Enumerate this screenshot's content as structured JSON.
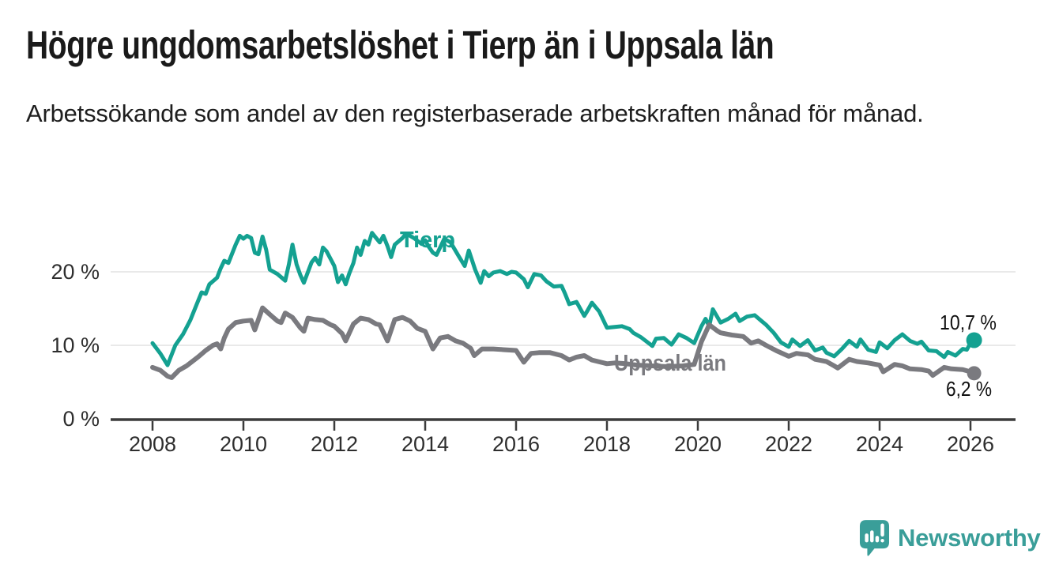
{
  "header": {
    "title": "Högre ungdomsarbetslöshet i Tierp än i Uppsala län",
    "subtitle": "Arbetssökande som andel av den registerbaserade arbetskraften månad för månad."
  },
  "chart_data": {
    "type": "line",
    "legend": "direct-labels-on-lines",
    "grid": "horizontal",
    "colors": {
      "grid": "#e2e2e2",
      "axis": "#3b3b3b",
      "tick_text": "#2e2e2e",
      "end_label_text": "#111111"
    },
    "x_axis": {
      "range_years": [
        2007.1,
        2027.0
      ],
      "ticks": [
        2008,
        2010,
        2012,
        2014,
        2016,
        2018,
        2020,
        2022,
        2024,
        2026
      ],
      "tick_labels": [
        "2008",
        "2010",
        "2012",
        "2014",
        "2016",
        "2018",
        "2020",
        "2022",
        "2024",
        "2026"
      ]
    },
    "y_axis": {
      "unit": "%",
      "range": [
        0,
        28
      ],
      "ticks": [
        {
          "value": 0,
          "label": "0 %"
        },
        {
          "value": 10,
          "label": "10 %"
        },
        {
          "value": 20,
          "label": "20 %"
        }
      ]
    },
    "series": [
      {
        "name": "Tierp",
        "color": "#14a191",
        "end_value": 10.7,
        "end_label": "10,7 %",
        "points": [
          [
            2008.0,
            10.3
          ],
          [
            2008.17,
            8.9
          ],
          [
            2008.33,
            7.3
          ],
          [
            2008.5,
            10.0
          ],
          [
            2008.67,
            11.5
          ],
          [
            2008.83,
            13.4
          ],
          [
            2009.0,
            16.0
          ],
          [
            2009.08,
            17.2
          ],
          [
            2009.17,
            17.0
          ],
          [
            2009.25,
            18.3
          ],
          [
            2009.42,
            19.2
          ],
          [
            2009.5,
            20.5
          ],
          [
            2009.58,
            21.5
          ],
          [
            2009.67,
            21.2
          ],
          [
            2009.83,
            23.7
          ],
          [
            2009.92,
            24.9
          ],
          [
            2010.0,
            24.5
          ],
          [
            2010.08,
            24.9
          ],
          [
            2010.17,
            24.6
          ],
          [
            2010.25,
            22.6
          ],
          [
            2010.33,
            22.4
          ],
          [
            2010.42,
            24.8
          ],
          [
            2010.5,
            23.0
          ],
          [
            2010.58,
            20.3
          ],
          [
            2010.75,
            19.7
          ],
          [
            2010.92,
            18.8
          ],
          [
            2011.0,
            21.0
          ],
          [
            2011.08,
            23.7
          ],
          [
            2011.17,
            21.0
          ],
          [
            2011.25,
            19.6
          ],
          [
            2011.33,
            18.5
          ],
          [
            2011.42,
            20.0
          ],
          [
            2011.5,
            21.3
          ],
          [
            2011.58,
            21.9
          ],
          [
            2011.67,
            21.0
          ],
          [
            2011.75,
            23.3
          ],
          [
            2011.83,
            22.8
          ],
          [
            2012.0,
            20.8
          ],
          [
            2012.08,
            18.6
          ],
          [
            2012.17,
            19.5
          ],
          [
            2012.25,
            18.3
          ],
          [
            2012.33,
            19.8
          ],
          [
            2012.42,
            21.2
          ],
          [
            2012.5,
            23.3
          ],
          [
            2012.58,
            22.3
          ],
          [
            2012.67,
            24.2
          ],
          [
            2012.75,
            23.7
          ],
          [
            2012.83,
            25.3
          ],
          [
            2012.92,
            24.6
          ],
          [
            2013.0,
            24.0
          ],
          [
            2013.08,
            24.9
          ],
          [
            2013.17,
            23.5
          ],
          [
            2013.25,
            22.0
          ],
          [
            2013.33,
            23.7
          ],
          [
            2013.5,
            24.6
          ],
          [
            2013.58,
            25.2
          ],
          [
            2013.75,
            24.6
          ],
          [
            2013.92,
            23.8
          ],
          [
            2014.0,
            24.3
          ],
          [
            2014.08,
            23.4
          ],
          [
            2014.17,
            22.6
          ],
          [
            2014.25,
            22.3
          ],
          [
            2014.42,
            24.5
          ],
          [
            2014.56,
            24.0
          ],
          [
            2014.73,
            22.2
          ],
          [
            2014.87,
            20.8
          ],
          [
            2014.96,
            22.9
          ],
          [
            2015.1,
            20.3
          ],
          [
            2015.22,
            18.5
          ],
          [
            2015.3,
            20.1
          ],
          [
            2015.4,
            19.4
          ],
          [
            2015.5,
            19.9
          ],
          [
            2015.65,
            20.1
          ],
          [
            2015.8,
            19.7
          ],
          [
            2015.9,
            20.0
          ],
          [
            2016.0,
            19.9
          ],
          [
            2016.17,
            19.0
          ],
          [
            2016.26,
            17.9
          ],
          [
            2016.4,
            19.7
          ],
          [
            2016.55,
            19.5
          ],
          [
            2016.67,
            18.7
          ],
          [
            2016.83,
            18.0
          ],
          [
            2017.0,
            18.1
          ],
          [
            2017.08,
            17.0
          ],
          [
            2017.17,
            15.6
          ],
          [
            2017.33,
            15.9
          ],
          [
            2017.5,
            14.0
          ],
          [
            2017.58,
            14.8
          ],
          [
            2017.67,
            15.8
          ],
          [
            2017.83,
            14.6
          ],
          [
            2018.0,
            12.4
          ],
          [
            2018.17,
            12.5
          ],
          [
            2018.33,
            12.6
          ],
          [
            2018.5,
            12.2
          ],
          [
            2018.58,
            11.7
          ],
          [
            2018.75,
            11.1
          ],
          [
            2019.0,
            9.9
          ],
          [
            2019.08,
            10.9
          ],
          [
            2019.25,
            11.0
          ],
          [
            2019.42,
            10.1
          ],
          [
            2019.58,
            11.5
          ],
          [
            2019.75,
            11.0
          ],
          [
            2019.92,
            10.3
          ],
          [
            2020.08,
            12.6
          ],
          [
            2020.17,
            13.6
          ],
          [
            2020.25,
            12.6
          ],
          [
            2020.33,
            14.9
          ],
          [
            2020.5,
            13.1
          ],
          [
            2020.67,
            13.6
          ],
          [
            2020.83,
            14.3
          ],
          [
            2020.92,
            13.3
          ],
          [
            2021.08,
            13.9
          ],
          [
            2021.25,
            14.1
          ],
          [
            2021.42,
            13.2
          ],
          [
            2021.5,
            12.8
          ],
          [
            2021.67,
            11.7
          ],
          [
            2021.83,
            10.4
          ],
          [
            2022.0,
            9.8
          ],
          [
            2022.08,
            10.8
          ],
          [
            2022.25,
            9.9
          ],
          [
            2022.42,
            10.7
          ],
          [
            2022.58,
            9.3
          ],
          [
            2022.75,
            9.7
          ],
          [
            2022.83,
            9.0
          ],
          [
            2023.0,
            8.5
          ],
          [
            2023.17,
            9.5
          ],
          [
            2023.33,
            10.6
          ],
          [
            2023.5,
            9.8
          ],
          [
            2023.58,
            10.8
          ],
          [
            2023.75,
            9.4
          ],
          [
            2023.92,
            9.1
          ],
          [
            2024.0,
            10.4
          ],
          [
            2024.17,
            9.6
          ],
          [
            2024.33,
            10.7
          ],
          [
            2024.5,
            11.5
          ],
          [
            2024.67,
            10.6
          ],
          [
            2024.83,
            10.2
          ],
          [
            2024.92,
            10.5
          ],
          [
            2025.08,
            9.3
          ],
          [
            2025.25,
            9.2
          ],
          [
            2025.42,
            8.4
          ],
          [
            2025.5,
            9.1
          ],
          [
            2025.67,
            8.6
          ],
          [
            2025.83,
            9.5
          ],
          [
            2025.92,
            9.4
          ],
          [
            2026.0,
            10.3
          ],
          [
            2026.08,
            10.7
          ]
        ]
      },
      {
        "name": "Uppsala län",
        "color": "#7a7a7f",
        "end_value": 6.2,
        "end_label": "6,2 %",
        "points": [
          [
            2008.0,
            7.0
          ],
          [
            2008.17,
            6.6
          ],
          [
            2008.33,
            5.8
          ],
          [
            2008.42,
            5.6
          ],
          [
            2008.58,
            6.6
          ],
          [
            2008.75,
            7.2
          ],
          [
            2009.0,
            8.4
          ],
          [
            2009.17,
            9.3
          ],
          [
            2009.33,
            10.0
          ],
          [
            2009.42,
            10.2
          ],
          [
            2009.5,
            9.5
          ],
          [
            2009.58,
            11.0
          ],
          [
            2009.67,
            12.2
          ],
          [
            2009.83,
            13.1
          ],
          [
            2010.0,
            13.3
          ],
          [
            2010.17,
            13.4
          ],
          [
            2010.25,
            12.1
          ],
          [
            2010.42,
            15.1
          ],
          [
            2010.58,
            14.2
          ],
          [
            2010.75,
            13.3
          ],
          [
            2010.83,
            13.1
          ],
          [
            2010.92,
            14.4
          ],
          [
            2011.08,
            13.8
          ],
          [
            2011.25,
            12.4
          ],
          [
            2011.33,
            11.9
          ],
          [
            2011.42,
            13.7
          ],
          [
            2011.58,
            13.5
          ],
          [
            2011.75,
            13.4
          ],
          [
            2011.92,
            12.8
          ],
          [
            2012.0,
            12.6
          ],
          [
            2012.17,
            11.6
          ],
          [
            2012.25,
            10.6
          ],
          [
            2012.42,
            12.9
          ],
          [
            2012.58,
            13.7
          ],
          [
            2012.75,
            13.5
          ],
          [
            2012.92,
            12.9
          ],
          [
            2013.0,
            12.8
          ],
          [
            2013.17,
            10.6
          ],
          [
            2013.33,
            13.5
          ],
          [
            2013.5,
            13.8
          ],
          [
            2013.67,
            13.3
          ],
          [
            2013.83,
            12.3
          ],
          [
            2014.0,
            11.9
          ],
          [
            2014.17,
            9.5
          ],
          [
            2014.33,
            11.0
          ],
          [
            2014.5,
            11.2
          ],
          [
            2014.67,
            10.6
          ],
          [
            2014.83,
            10.3
          ],
          [
            2015.0,
            9.6
          ],
          [
            2015.08,
            8.6
          ],
          [
            2015.25,
            9.5
          ],
          [
            2015.5,
            9.5
          ],
          [
            2015.75,
            9.4
          ],
          [
            2016.0,
            9.3
          ],
          [
            2016.17,
            7.7
          ],
          [
            2016.33,
            8.9
          ],
          [
            2016.5,
            9.0
          ],
          [
            2016.75,
            9.0
          ],
          [
            2017.0,
            8.6
          ],
          [
            2017.17,
            8.0
          ],
          [
            2017.33,
            8.4
          ],
          [
            2017.5,
            8.6
          ],
          [
            2017.67,
            8.0
          ],
          [
            2018.0,
            7.5
          ],
          [
            2018.17,
            7.6
          ],
          [
            2018.42,
            7.5
          ],
          [
            2018.67,
            7.3
          ],
          [
            2019.0,
            7.2
          ],
          [
            2019.33,
            7.1
          ],
          [
            2019.67,
            7.2
          ],
          [
            2019.92,
            7.4
          ],
          [
            2020.08,
            10.5
          ],
          [
            2020.25,
            12.8
          ],
          [
            2020.42,
            12.0
          ],
          [
            2020.5,
            11.7
          ],
          [
            2020.75,
            11.4
          ],
          [
            2021.0,
            11.2
          ],
          [
            2021.17,
            10.3
          ],
          [
            2021.33,
            10.6
          ],
          [
            2021.5,
            10.0
          ],
          [
            2021.75,
            9.2
          ],
          [
            2022.0,
            8.5
          ],
          [
            2022.17,
            8.9
          ],
          [
            2022.42,
            8.7
          ],
          [
            2022.58,
            8.1
          ],
          [
            2022.83,
            7.8
          ],
          [
            2023.0,
            7.2
          ],
          [
            2023.08,
            6.9
          ],
          [
            2023.33,
            8.1
          ],
          [
            2023.5,
            7.8
          ],
          [
            2023.75,
            7.6
          ],
          [
            2024.0,
            7.3
          ],
          [
            2024.08,
            6.4
          ],
          [
            2024.33,
            7.4
          ],
          [
            2024.5,
            7.2
          ],
          [
            2024.67,
            6.8
          ],
          [
            2024.92,
            6.7
          ],
          [
            2025.08,
            6.5
          ],
          [
            2025.17,
            5.9
          ],
          [
            2025.42,
            7.0
          ],
          [
            2025.58,
            6.8
          ],
          [
            2025.83,
            6.7
          ],
          [
            2026.0,
            6.4
          ],
          [
            2026.08,
            6.2
          ]
        ]
      }
    ]
  },
  "branding": {
    "name": "Newsworthy",
    "logo_color": "#3a9e99"
  }
}
